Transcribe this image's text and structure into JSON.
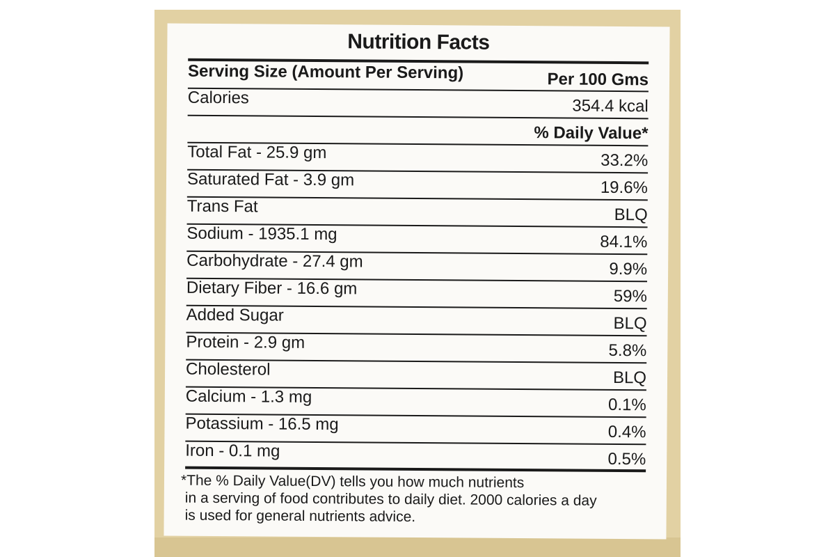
{
  "label": {
    "title": "Nutrition Facts",
    "serving_size": "Serving Size (Amount Per Serving)",
    "per": "Per 100 Gms",
    "calories_label": "Calories",
    "calories_value": "354.4 kcal",
    "daily_value_header": "% Daily Value*",
    "nutrients": [
      {
        "label": "Total Fat - 25.9 gm",
        "value": "33.2%"
      },
      {
        "label": "Saturated Fat - 3.9 gm",
        "value": "19.6%"
      },
      {
        "label": "Trans Fat",
        "value": "BLQ"
      },
      {
        "label": "Sodium - 1935.1 mg",
        "value": "84.1%"
      },
      {
        "label": "Carbohydrate - 27.4 gm",
        "value": "9.9%"
      },
      {
        "label": "Dietary Fiber - 16.6 gm",
        "value": "59%"
      },
      {
        "label": "Added Sugar",
        "value": "BLQ"
      },
      {
        "label": "Protein - 2.9 gm",
        "value": "5.8%"
      },
      {
        "label": "Cholesterol",
        "value": "BLQ"
      },
      {
        "label": "Calcium - 1.3 mg",
        "value": "0.1%"
      },
      {
        "label": "Potassium - 16.5 mg",
        "value": "0.4%"
      },
      {
        "label": "Iron - 0.1 mg",
        "value": "0.5%"
      }
    ],
    "footnote_lines": [
      "*The % Daily Value(DV) tells you how much nutrients",
      "in a serving of food contributes to daily diet. 2000 calories a day",
      "is used for general nutrients advice."
    ]
  }
}
